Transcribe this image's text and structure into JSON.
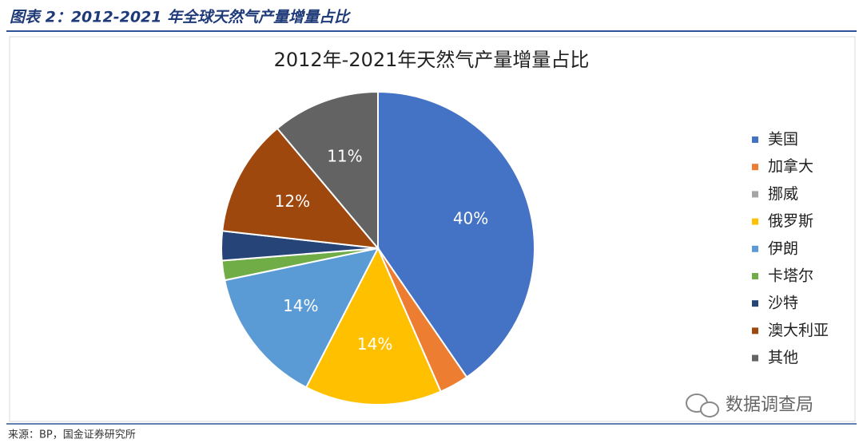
{
  "header": {
    "title": "图表 2：2012-2021 年全球天然气产量增量占比"
  },
  "footer": {
    "source": "来源：BP，国金证券研究所",
    "watermark": "数据调查局"
  },
  "chart_data": {
    "type": "pie",
    "title": "2012年-2021年天然气产量增量占比",
    "categories": [
      "美国",
      "加拿大",
      "挪威",
      "俄罗斯",
      "伊朗",
      "卡塔尔",
      "沙特",
      "澳大利亚",
      "其他"
    ],
    "values": [
      40,
      3,
      0,
      14,
      14,
      2,
      3,
      12,
      11
    ],
    "value_labels": [
      "40%",
      null,
      null,
      "14%",
      "14%",
      null,
      null,
      "12%",
      "11%"
    ],
    "colors": [
      "#4472c4",
      "#ed7d31",
      "#a5a5a5",
      "#ffc000",
      "#5b9bd5",
      "#70ad47",
      "#264478",
      "#9e480e",
      "#636363"
    ],
    "legend": "right"
  }
}
